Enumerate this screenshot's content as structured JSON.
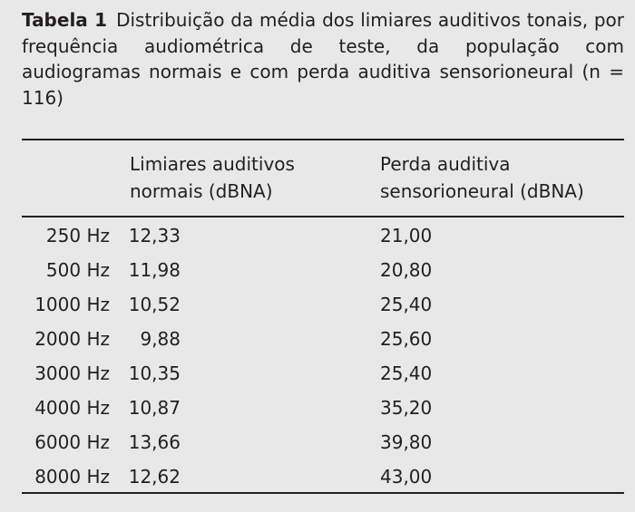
{
  "caption": {
    "label": "Tabela 1",
    "text": "Distribuição da média dos limiares auditivos tonais, por frequência audiométrica de teste, da população com audiogramas normais e com perda auditiva sensorioneural (n = 116)"
  },
  "table": {
    "headers": {
      "col1": [
        "Limiares auditivos",
        "normais (dBNA)"
      ],
      "col2": [
        "Perda auditiva",
        "sensorioneural (dBNA)"
      ]
    },
    "rows": [
      {
        "freq": "250 Hz",
        "normal": "12,33",
        "loss": "21,00"
      },
      {
        "freq": "500 Hz",
        "normal": "11,98",
        "loss": "20,80"
      },
      {
        "freq": "1000 Hz",
        "normal": "10,52",
        "loss": "25,40"
      },
      {
        "freq": "2000 Hz",
        "normal": "9,88",
        "loss": "25,60"
      },
      {
        "freq": "3000 Hz",
        "normal": "10,35",
        "loss": "25,40"
      },
      {
        "freq": "4000 Hz",
        "normal": "10,87",
        "loss": "35,20"
      },
      {
        "freq": "6000 Hz",
        "normal": "13,66",
        "loss": "39,80"
      },
      {
        "freq": "8000 Hz",
        "normal": "12,62",
        "loss": "43,00"
      }
    ]
  }
}
